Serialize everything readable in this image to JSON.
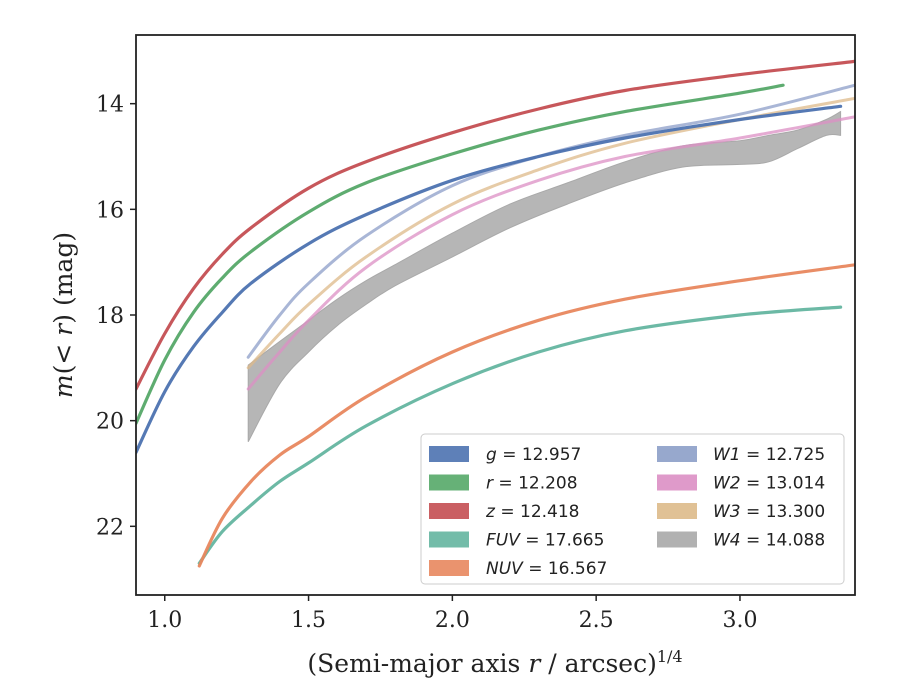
{
  "chart_data": {
    "type": "line",
    "xlabel_main": "(Semi-major axis ",
    "xlabel_var": "r",
    "xlabel_rest": " / arcsec)",
    "xlabel_sup": "1/4",
    "ylabel_var_m": "m",
    "ylabel_paren_open": "(",
    "ylabel_lt": "< ",
    "ylabel_var_r": "r",
    "ylabel_rest": ") (mag)",
    "xlim": [
      0.9,
      3.4
    ],
    "ylim": [
      23.3,
      12.7
    ],
    "y_inverted": true,
    "x_ticks": [
      "1.0",
      "1.5",
      "2.0",
      "2.5",
      "3.0"
    ],
    "y_ticks": [
      "14",
      "16",
      "18",
      "20",
      "22"
    ],
    "legend_position": "lower-right",
    "series": [
      {
        "name": "g",
        "value": "12.957",
        "color": "#4c72b0",
        "band": false,
        "x": [
          0.9,
          1.0,
          1.1,
          1.2,
          1.3,
          1.5,
          1.7,
          2.0,
          2.3,
          2.6,
          3.0,
          3.35
        ],
        "y": [
          20.6,
          19.45,
          18.6,
          17.95,
          17.4,
          16.65,
          16.1,
          15.45,
          15.0,
          14.65,
          14.3,
          14.05
        ]
      },
      {
        "name": "r",
        "value": "12.208",
        "color": "#55a868",
        "band": false,
        "x": [
          0.9,
          1.0,
          1.1,
          1.2,
          1.3,
          1.5,
          1.7,
          2.0,
          2.3,
          2.6,
          3.0,
          3.15
        ],
        "y": [
          20.05,
          18.85,
          17.95,
          17.3,
          16.8,
          16.05,
          15.5,
          14.95,
          14.5,
          14.15,
          13.8,
          13.65
        ]
      },
      {
        "name": "z",
        "value": "12.418",
        "color": "#c44e52",
        "band": false,
        "x": [
          0.9,
          1.0,
          1.1,
          1.2,
          1.3,
          1.5,
          1.7,
          2.0,
          2.3,
          2.6,
          3.0,
          3.4
        ],
        "y": [
          19.4,
          18.35,
          17.5,
          16.85,
          16.35,
          15.6,
          15.1,
          14.55,
          14.1,
          13.75,
          13.45,
          13.2
        ]
      },
      {
        "name": "FUV",
        "value": "17.665",
        "color": "#64b5a0",
        "band": false,
        "x": [
          1.12,
          1.2,
          1.3,
          1.4,
          1.5,
          1.7,
          2.0,
          2.3,
          2.6,
          3.0,
          3.35
        ],
        "y": [
          22.7,
          22.1,
          21.6,
          21.15,
          20.8,
          20.1,
          19.3,
          18.7,
          18.3,
          18.0,
          17.85
        ]
      },
      {
        "name": "NUV",
        "value": "16.567",
        "color": "#e8875e",
        "band": false,
        "x": [
          1.12,
          1.2,
          1.3,
          1.4,
          1.5,
          1.7,
          2.0,
          2.3,
          2.6,
          3.0,
          3.4
        ],
        "y": [
          22.75,
          21.85,
          21.15,
          20.65,
          20.3,
          19.55,
          18.7,
          18.1,
          17.7,
          17.35,
          17.05
        ]
      },
      {
        "name": "W1",
        "value": "12.725",
        "color": "#8c9ec8",
        "band": false,
        "x": [
          1.29,
          1.4,
          1.5,
          1.7,
          2.0,
          2.3,
          2.6,
          3.0,
          3.4
        ],
        "y": [
          18.8,
          18.0,
          17.4,
          16.5,
          15.55,
          15.0,
          14.6,
          14.2,
          13.65
        ]
      },
      {
        "name": "W2",
        "value": "13.014",
        "color": "#dc8fc4",
        "band": false,
        "x": [
          1.29,
          1.4,
          1.5,
          1.7,
          2.0,
          2.3,
          2.6,
          3.0,
          3.4
        ],
        "y": [
          19.4,
          18.7,
          18.1,
          17.1,
          16.1,
          15.45,
          15.0,
          14.65,
          14.25
        ]
      },
      {
        "name": "W3",
        "value": "13.300",
        "color": "#ddba8a",
        "band": false,
        "x": [
          1.29,
          1.4,
          1.5,
          1.7,
          2.0,
          2.3,
          2.6,
          3.0,
          3.4
        ],
        "y": [
          19.0,
          18.35,
          17.8,
          16.9,
          15.9,
          15.25,
          14.75,
          14.3,
          13.9
        ]
      },
      {
        "name": "W4",
        "value": "14.088",
        "color": "#a9a9a9",
        "band": true,
        "x": [
          1.29,
          1.4,
          1.5,
          1.6,
          1.7,
          1.8,
          2.0,
          2.2,
          2.4,
          2.6,
          2.8,
          3.0,
          3.1,
          3.2,
          3.3,
          3.35
        ],
        "y_upper": [
          18.95,
          18.5,
          18.1,
          17.7,
          17.35,
          17.05,
          16.45,
          15.9,
          15.5,
          15.1,
          14.8,
          14.7,
          14.6,
          14.5,
          14.3,
          14.15
        ],
        "y_lower": [
          20.4,
          19.3,
          18.7,
          18.2,
          17.8,
          17.45,
          16.9,
          16.35,
          15.9,
          15.5,
          15.2,
          15.15,
          15.1,
          14.85,
          14.6,
          14.6
        ]
      }
    ]
  }
}
